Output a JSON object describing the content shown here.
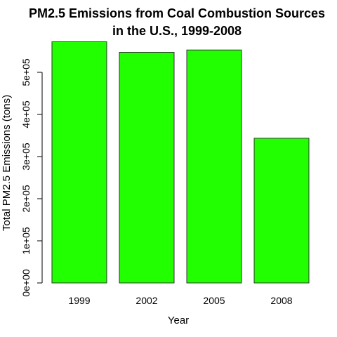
{
  "chart_data": {
    "type": "bar",
    "title": [
      "PM2.5 Emissions from Coal Combustion Sources",
      "in the U.S., 1999-2008"
    ],
    "xlabel": "Year",
    "ylabel": "Total PM2.5 Emissions (tons)",
    "categories": [
      "1999",
      "2002",
      "2005",
      "2008"
    ],
    "values": [
      572500,
      547500,
      553000,
      343500
    ],
    "ylim": [
      0,
      600000
    ],
    "yticks": [
      0,
      100000,
      200000,
      300000,
      400000,
      500000
    ],
    "ytick_labels": [
      "0e+00",
      "1e+05",
      "2e+05",
      "3e+05",
      "4e+05",
      "5e+05"
    ],
    "bar_color": "#22ff00",
    "border_color": "#333333",
    "grid": false
  }
}
